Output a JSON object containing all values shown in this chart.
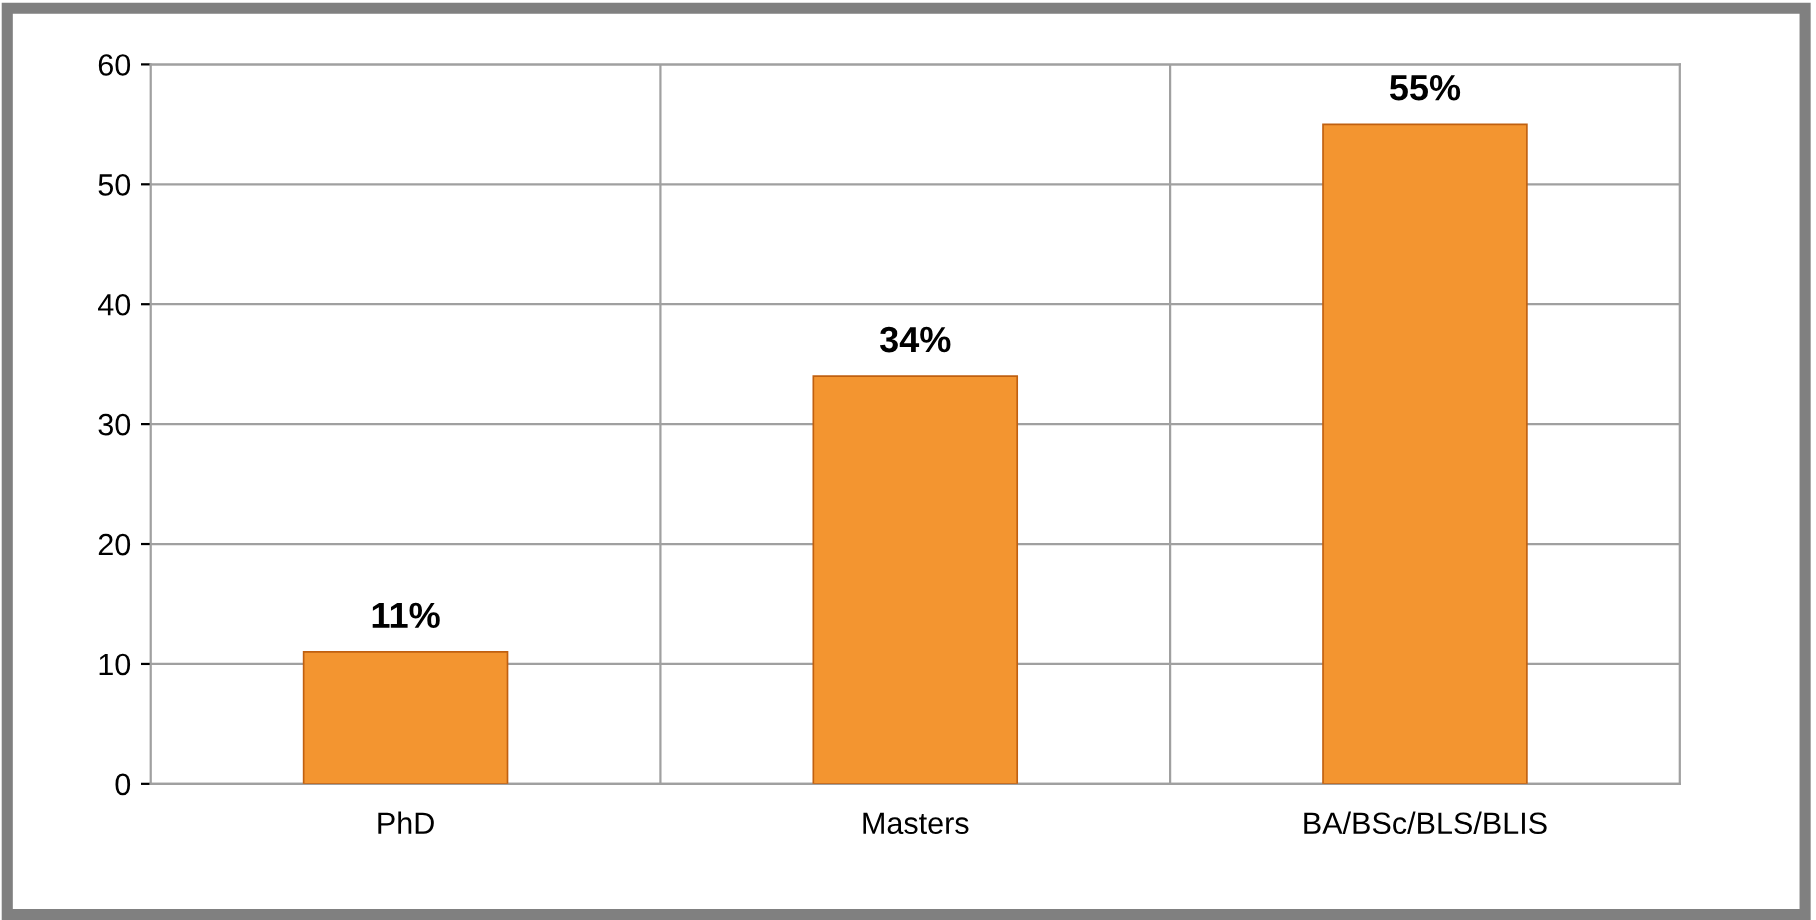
{
  "chart_data": {
    "type": "bar",
    "categories": [
      "PhD",
      "Masters",
      "BA/BSc/BLS/BLIS"
    ],
    "values": [
      11,
      34,
      55
    ],
    "value_labels": [
      "11%",
      "34%",
      "55%"
    ],
    "color": "#f39530",
    "ylim": [
      0,
      60
    ],
    "yticks": [
      0,
      10,
      20,
      30,
      40,
      50,
      60
    ],
    "grid": true,
    "legend": false
  }
}
